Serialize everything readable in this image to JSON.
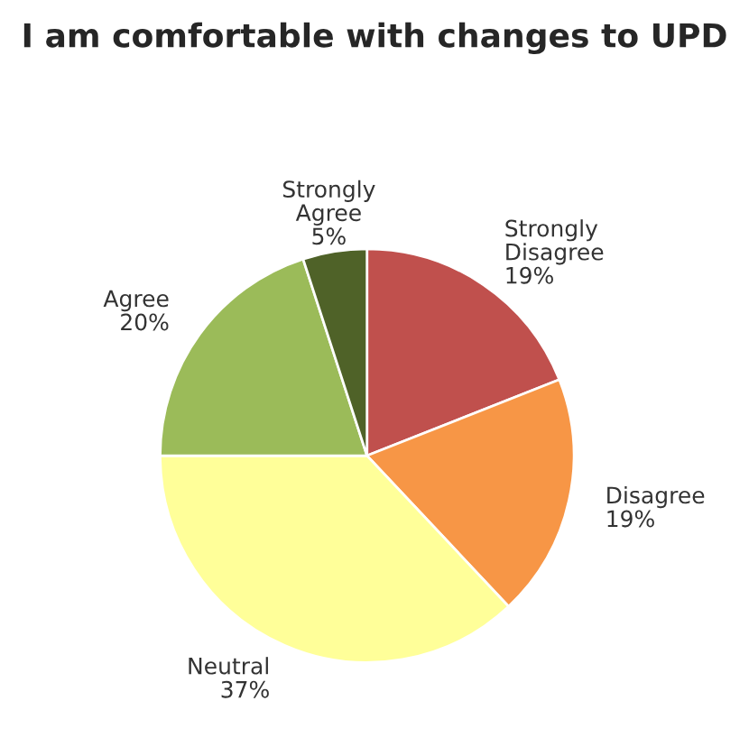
{
  "chart_data": {
    "type": "pie",
    "title": "I am comfortable with changes to UPD",
    "categories": [
      "Strongly Disagree",
      "Disagree",
      "Neutral",
      "Agree",
      "Strongly Agree"
    ],
    "values": [
      19,
      19,
      37,
      20,
      5
    ],
    "value_labels": [
      "19%",
      "19%",
      "37%",
      "20%",
      "5%"
    ],
    "colors": [
      "#c0504d",
      "#f79646",
      "#ffff99",
      "#9bbb59",
      "#4f6228"
    ]
  }
}
